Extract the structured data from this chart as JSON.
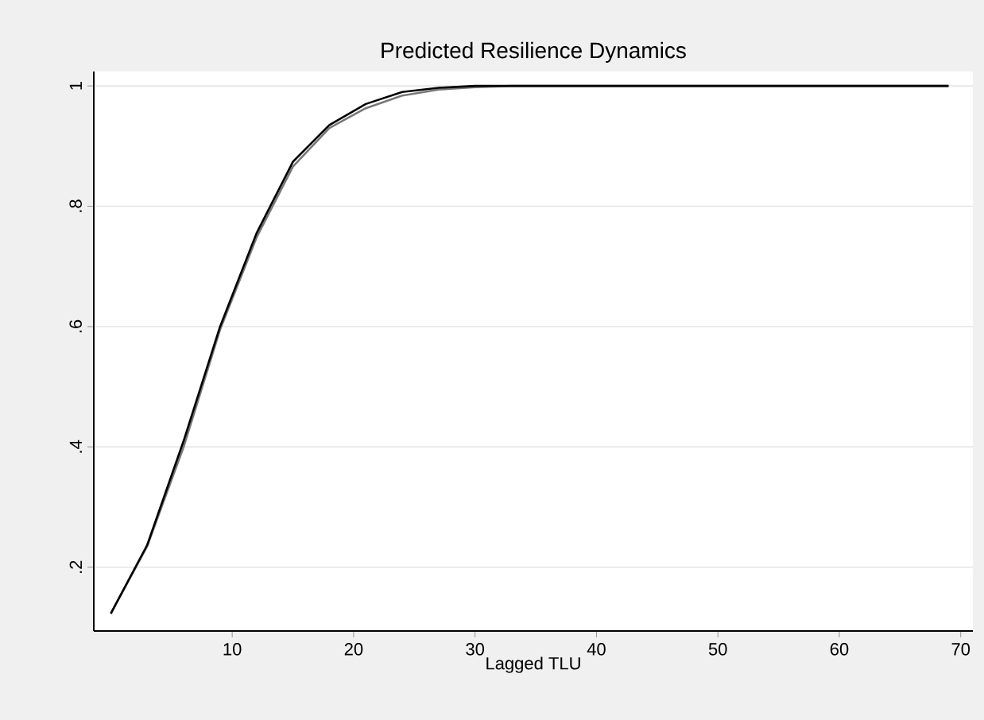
{
  "chart_data": {
    "type": "line",
    "title": "Predicted Resilience Dynamics",
    "xlabel": "Lagged TLU",
    "x": [
      0,
      3,
      6,
      9,
      12,
      15,
      18,
      21,
      24,
      27,
      30,
      33,
      36,
      39,
      42,
      45,
      48,
      51,
      54,
      57,
      60,
      63,
      66,
      69
    ],
    "series": [
      {
        "color": "#777777",
        "values": [
          0.123,
          0.235,
          0.4,
          0.595,
          0.748,
          0.866,
          0.93,
          0.963,
          0.984,
          0.994,
          0.998,
          1,
          1,
          1,
          1,
          1,
          1,
          1,
          1,
          1,
          1,
          1,
          1,
          1
        ]
      },
      {
        "color": "#000000",
        "values": [
          0.123,
          0.237,
          0.41,
          0.6,
          0.755,
          0.874,
          0.935,
          0.97,
          0.99,
          0.997,
          1,
          1,
          1,
          1,
          1,
          1,
          1,
          1,
          1,
          1,
          1,
          1,
          1,
          1
        ]
      }
    ],
    "xlim": [
      -1.4,
      71
    ],
    "ylim": [
      0.094,
      1.024
    ],
    "xticks": [
      10,
      20,
      30,
      40,
      50,
      60,
      70
    ],
    "yticks": [
      {
        "value": 0.2,
        "label": ".2"
      },
      {
        "value": 0.4,
        "label": ".4"
      },
      {
        "value": 0.6,
        "label": ".6"
      },
      {
        "value": 0.8,
        "label": ".8"
      },
      1
    ],
    "grid": "y",
    "marker": "none",
    "line_style": "solid"
  }
}
